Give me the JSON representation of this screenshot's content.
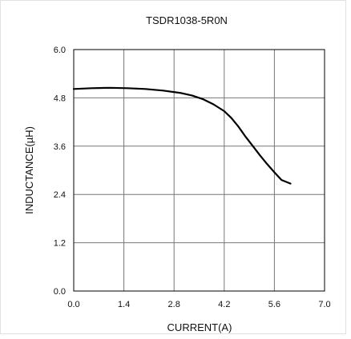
{
  "chart_data": {
    "type": "line",
    "title": "TSDR1038-5R0N",
    "xlabel": "CURRENT(A)",
    "ylabel": "INDUCTANCE(µH)",
    "xlim": [
      0,
      7.0
    ],
    "ylim": [
      0,
      6.0
    ],
    "x_ticks": [
      "0.0",
      "1.4",
      "2.8",
      "4.2",
      "5.6",
      "7.0"
    ],
    "y_ticks": [
      "0.0",
      "1.2",
      "2.4",
      "3.6",
      "4.8",
      "6.0"
    ],
    "grid": true,
    "series": [
      {
        "color": "#000000",
        "x": [
          0.0,
          0.5,
          1.0,
          1.5,
          2.0,
          2.5,
          3.0,
          3.3,
          3.6,
          3.9,
          4.2,
          4.4,
          4.6,
          4.8,
          5.0,
          5.2,
          5.4,
          5.6,
          5.8,
          6.05
        ],
        "y": [
          5.02,
          5.04,
          5.05,
          5.04,
          5.02,
          4.98,
          4.92,
          4.86,
          4.77,
          4.64,
          4.47,
          4.3,
          4.08,
          3.83,
          3.6,
          3.37,
          3.15,
          2.95,
          2.76,
          2.67
        ]
      }
    ]
  }
}
